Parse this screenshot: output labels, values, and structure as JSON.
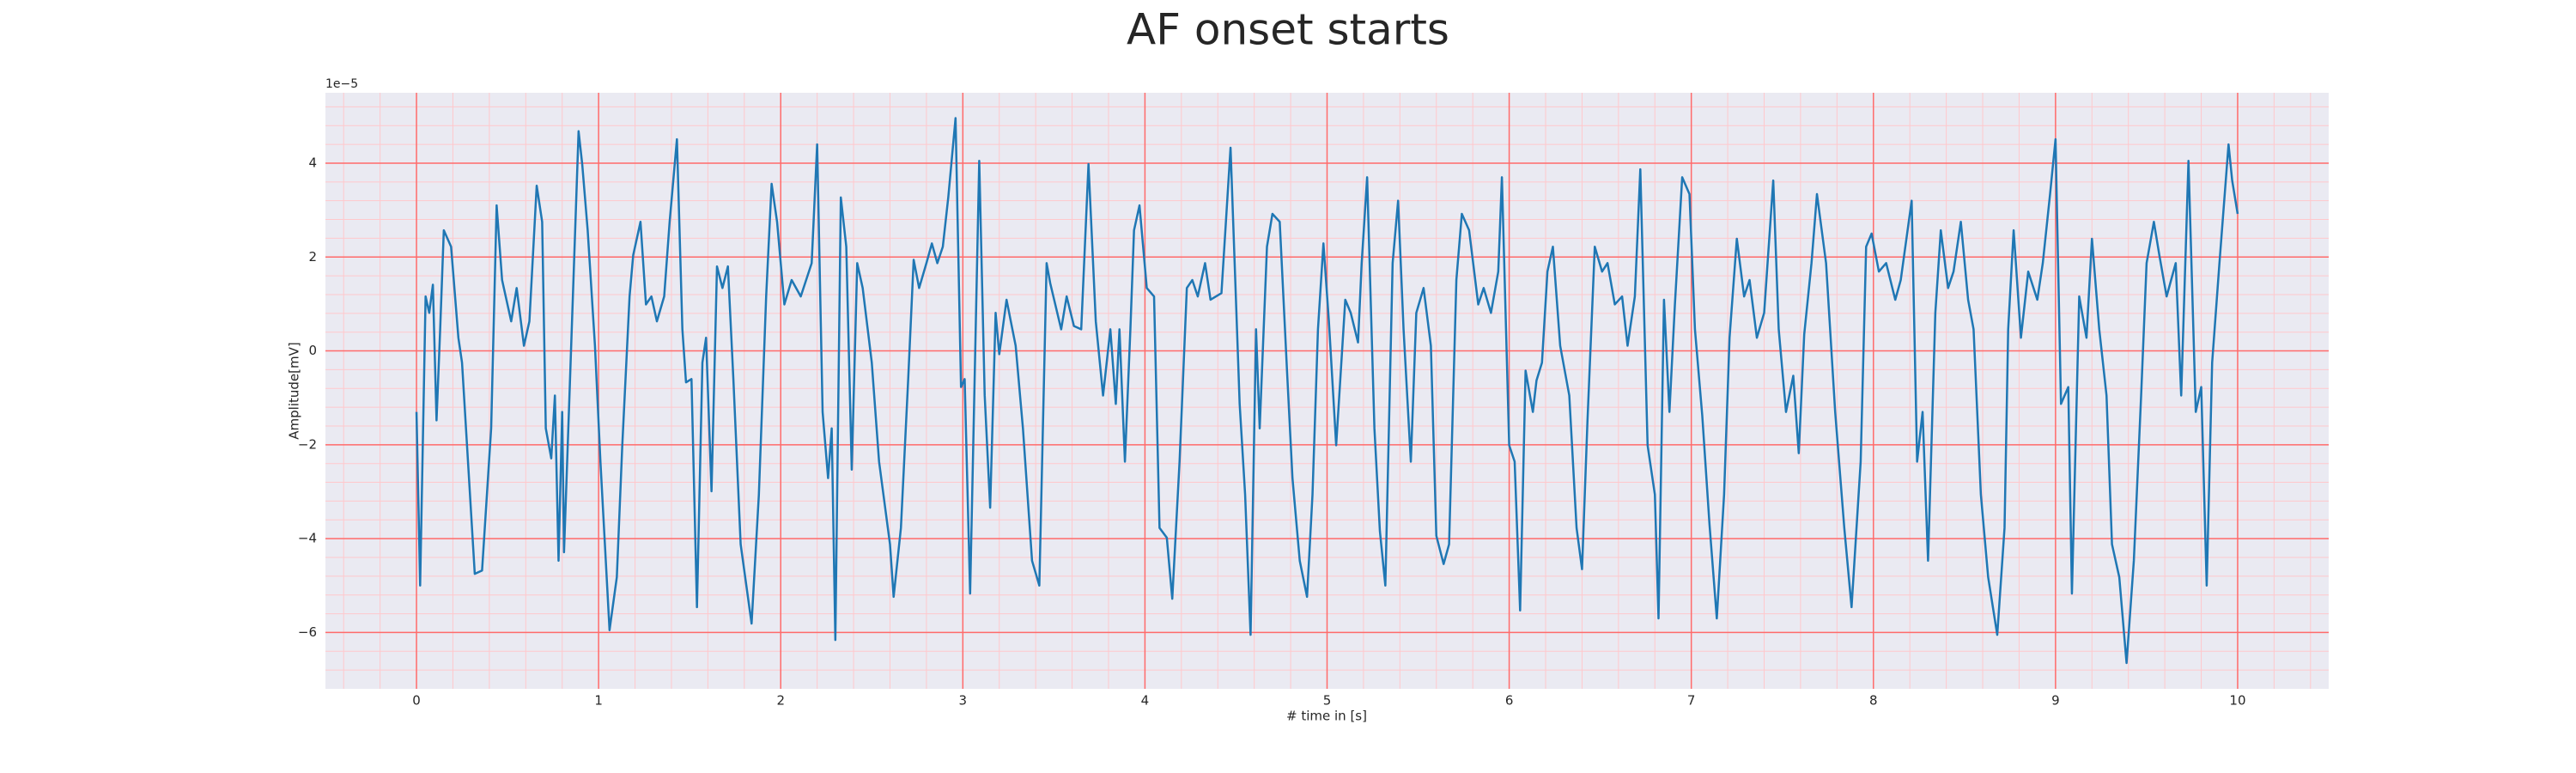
{
  "chart_data": {
    "type": "line",
    "title": "AF onset starts",
    "xlabel": "# time in [s]",
    "ylabel": "Amplitude[mV]",
    "y_offset_text": "1e−5",
    "color": "#1f77b4",
    "background": "#eaeaf2",
    "grid": true,
    "grid_color": "#ff6b6b",
    "minor_grid_color": "#ffc8cc",
    "xlim": [
      -0.5,
      10.5
    ],
    "ylim": [
      -7.2,
      5.5
    ],
    "xticks": [
      0,
      1,
      2,
      3,
      4,
      5,
      6,
      7,
      8,
      9,
      10
    ],
    "yticks": [
      {
        "value": -6,
        "label": "−6"
      },
      {
        "value": -4,
        "label": "−4"
      },
      {
        "value": -2,
        "label": "−2"
      },
      0,
      2,
      4
    ],
    "xminorticks": [
      -0.4,
      -0.2,
      0,
      0.2,
      0.4,
      0.6,
      0.8,
      1,
      1.2,
      1.4,
      1.6,
      1.8,
      2,
      2.2,
      2.4,
      2.6,
      2.8,
      3,
      3.2,
      3.4,
      3.6,
      3.8,
      4,
      4.2,
      4.4,
      4.6,
      4.8,
      5,
      5.2,
      5.4,
      5.6,
      5.8,
      6,
      6.2,
      6.4,
      6.6,
      6.8,
      7,
      7.2,
      7.4,
      7.6,
      7.8,
      8,
      8.2,
      8.4,
      8.6,
      8.8,
      9,
      9.2,
      9.4,
      9.6,
      9.8,
      10,
      10.2,
      10.4
    ],
    "yminorticks": [
      -6.8,
      -6.4,
      -6,
      -5.6,
      -5.2,
      -4.8,
      -4.4,
      -4,
      -3.6,
      -3.2,
      -2.8,
      -2.4,
      -2,
      -1.6,
      -1.2,
      -0.8,
      -0.4,
      0,
      0.4,
      0.8,
      1.2,
      1.6,
      2,
      2.4,
      2.8,
      3.2,
      3.6,
      4,
      4.4,
      4.8,
      5.2
    ],
    "x": [
      0.0,
      0.02,
      0.05,
      0.07,
      0.09,
      0.11,
      0.13,
      0.15,
      0.19,
      0.23,
      0.25,
      0.32,
      0.36,
      0.41,
      0.44,
      0.47,
      0.52,
      0.55,
      0.59,
      0.62,
      0.66,
      0.69,
      0.71,
      0.74,
      0.76,
      0.78,
      0.8,
      0.81,
      0.84,
      0.89,
      0.91,
      0.94,
      0.98,
      1.01,
      1.06,
      1.1,
      1.13,
      1.17,
      1.19,
      1.23,
      1.26,
      1.29,
      1.32,
      1.36,
      1.39,
      1.43,
      1.46,
      1.48,
      1.51,
      1.54,
      1.57,
      1.59,
      1.62,
      1.65,
      1.68,
      1.71,
      1.74,
      1.78,
      1.84,
      1.88,
      1.92,
      1.95,
      1.98,
      2.02,
      2.06,
      2.11,
      2.17,
      2.2,
      2.23,
      2.26,
      2.28,
      2.3,
      2.33,
      2.36,
      2.39,
      2.42,
      2.45,
      2.5,
      2.54,
      2.6,
      2.62,
      2.66,
      2.7,
      2.73,
      2.76,
      2.8,
      2.83,
      2.86,
      2.89,
      2.92,
      2.96,
      2.99,
      3.01,
      3.04,
      3.09,
      3.12,
      3.15,
      3.18,
      3.2,
      3.24,
      3.29,
      3.33,
      3.38,
      3.42,
      3.46,
      3.48,
      3.54,
      3.57,
      3.61,
      3.65,
      3.69,
      3.73,
      3.77,
      3.81,
      3.84,
      3.86,
      3.89,
      3.92,
      3.94,
      3.97,
      4.01,
      4.05,
      4.08,
      4.12,
      4.15,
      4.19,
      4.23,
      4.26,
      4.29,
      4.33,
      4.36,
      4.42,
      4.47,
      4.52,
      4.55,
      4.58,
      4.61,
      4.63,
      4.67,
      4.7,
      4.74,
      4.78,
      4.81,
      4.85,
      4.89,
      4.92,
      4.95,
      4.98,
      5.01,
      5.05,
      5.1,
      5.13,
      5.17,
      5.19,
      5.22,
      5.26,
      5.29,
      5.32,
      5.36,
      5.39,
      5.42,
      5.46,
      5.49,
      5.53,
      5.57,
      5.6,
      5.64,
      5.67,
      5.71,
      5.74,
      5.78,
      5.83,
      5.86,
      5.9,
      5.94,
      5.96,
      6.0,
      6.03,
      6.06,
      6.09,
      6.13,
      6.15,
      6.18,
      6.21,
      6.24,
      6.28,
      6.33,
      6.37,
      6.4,
      6.43,
      6.47,
      6.51,
      6.54,
      6.58,
      6.62,
      6.65,
      6.69,
      6.72,
      6.76,
      6.8,
      6.82,
      6.85,
      6.88,
      6.91,
      6.95,
      6.99,
      7.02,
      7.06,
      7.1,
      7.14,
      7.18,
      7.21,
      7.25,
      7.29,
      7.32,
      7.36,
      7.4,
      7.45,
      7.48,
      7.52,
      7.56,
      7.59,
      7.62,
      7.66,
      7.69,
      7.74,
      7.79,
      7.84,
      7.88,
      7.93,
      7.96,
      7.99,
      8.03,
      8.07,
      8.12,
      8.15,
      8.21,
      8.24,
      8.27,
      8.3,
      8.34,
      8.37,
      8.41,
      8.44,
      8.48,
      8.52,
      8.55,
      8.59,
      8.63,
      8.68,
      8.72,
      8.74,
      8.77,
      8.81,
      8.85,
      8.9,
      8.93,
      8.97,
      9.0,
      9.03,
      9.07,
      9.09,
      9.13,
      9.17,
      9.2,
      9.24,
      9.28,
      9.31,
      9.35,
      9.39,
      9.43,
      9.47,
      9.5,
      9.54,
      9.57,
      9.61,
      9.66,
      9.69,
      9.73,
      9.77,
      9.8,
      9.83,
      9.86,
      9.9,
      9.95,
      9.97,
      10.0
    ],
    "values": [
      -1.3,
      -5.0,
      1.16,
      0.81,
      1.41,
      -1.48,
      0.46,
      2.57,
      2.22,
      0.28,
      -0.25,
      -4.75,
      -4.68,
      -1.65,
      3.1,
      1.51,
      0.63,
      1.34,
      0.11,
      0.63,
      3.52,
      2.75,
      -1.65,
      -2.29,
      -0.95,
      -4.47,
      -1.3,
      -4.29,
      -0.95,
      4.68,
      3.98,
      2.57,
      0.11,
      -2.36,
      -5.95,
      -4.82,
      -2.01,
      1.16,
      2.04,
      2.75,
      0.99,
      1.16,
      0.63,
      1.16,
      2.75,
      4.51,
      0.46,
      -0.67,
      -0.6,
      -5.46,
      -0.25,
      0.28,
      -2.99,
      1.8,
      1.34,
      1.8,
      -0.6,
      -4.12,
      -5.81,
      -3.06,
      1.16,
      3.56,
      2.75,
      0.99,
      1.51,
      1.16,
      1.87,
      4.4,
      -1.3,
      -2.71,
      -1.65,
      -6.16,
      3.27,
      2.22,
      -2.53,
      1.87,
      1.34,
      -0.25,
      -2.36,
      -4.12,
      -5.24,
      -3.77,
      -0.6,
      1.94,
      1.34,
      1.87,
      2.29,
      1.87,
      2.22,
      3.27,
      4.96,
      -0.77,
      -0.6,
      -5.17,
      4.05,
      -0.95,
      -3.34,
      0.81,
      -0.07,
      1.09,
      0.11,
      -1.65,
      -4.47,
      -5.0,
      1.87,
      1.44,
      0.46,
      1.16,
      0.53,
      0.46,
      3.98,
      0.63,
      -0.95,
      0.46,
      -1.13,
      0.46,
      -2.36,
      0.46,
      2.57,
      3.1,
      1.34,
      1.16,
      -3.77,
      -3.98,
      -5.28,
      -2.36,
      1.34,
      1.51,
      1.16,
      1.87,
      1.09,
      1.23,
      4.33,
      -1.13,
      -3.06,
      -6.05,
      0.46,
      -1.65,
      2.22,
      2.92,
      2.75,
      -0.42,
      -2.71,
      -4.47,
      -5.24,
      -3.06,
      0.46,
      2.29,
      0.63,
      -2.01,
      1.09,
      0.81,
      0.18,
      1.87,
      3.7,
      -1.65,
      -3.84,
      -5.0,
      1.87,
      3.2,
      0.46,
      -2.36,
      0.81,
      1.34,
      0.11,
      -3.94,
      -4.54,
      -4.12,
      1.51,
      2.92,
      2.57,
      0.99,
      1.34,
      0.81,
      1.69,
      3.7,
      -2.01,
      -2.36,
      -5.53,
      -0.42,
      -1.3,
      -0.63,
      -0.25,
      1.69,
      2.22,
      0.11,
      -0.95,
      -3.77,
      -4.65,
      -1.48,
      2.22,
      1.69,
      1.87,
      0.99,
      1.16,
      0.11,
      1.16,
      3.87,
      -2.01,
      -3.06,
      -5.7,
      1.09,
      -1.3,
      0.99,
      3.7,
      3.34,
      0.46,
      -1.37,
      -3.7,
      -5.7,
      -3.06,
      0.28,
      2.39,
      1.16,
      1.51,
      0.28,
      0.81,
      3.63,
      0.46,
      -1.3,
      -0.53,
      -2.18,
      0.35,
      1.87,
      3.34,
      1.87,
      -1.3,
      -3.77,
      -5.46,
      -2.36,
      2.22,
      2.5,
      1.69,
      1.87,
      1.09,
      1.51,
      3.2,
      -2.36,
      -1.3,
      -4.47,
      0.81,
      2.57,
      1.34,
      1.69,
      2.75,
      1.09,
      0.46,
      -3.06,
      -4.82,
      -6.05,
      -3.77,
      0.46,
      2.57,
      0.28,
      1.69,
      1.09,
      1.87,
      3.34,
      4.51,
      -1.13,
      -0.77,
      -5.17,
      1.16,
      0.28,
      2.39,
      0.46,
      -0.95,
      -4.12,
      -4.82,
      -6.65,
      -4.47,
      -0.95,
      1.87,
      2.75,
      2.04,
      1.16,
      1.87,
      -0.95,
      4.05,
      -1.3,
      -0.77,
      -5.0,
      -0.25,
      1.87,
      4.4,
      3.63,
      2.92
    ]
  }
}
